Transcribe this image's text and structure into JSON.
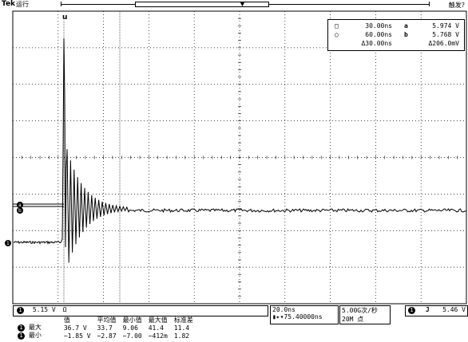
{
  "top": {
    "brand": "Tek",
    "status": "运行",
    "trigger_status": "触发?"
  },
  "cursors": {
    "row1": {
      "time": "30.00ns",
      "volt_sym": "a",
      "volt": "5.974 V"
    },
    "row2": {
      "time": "60.00ns",
      "volt_sym": "b",
      "volt": "5.768 V"
    },
    "delta": {
      "time": "Δ30.00ns",
      "volt": "Δ206.0mV"
    }
  },
  "channel": {
    "number": "1",
    "scale": "5.15 V",
    "coupling": "Ω",
    "marker": "1"
  },
  "horizontal": {
    "scale": "20.0ns",
    "position": "▮▸▾75.40000ns",
    "sample_rate": "5.00G次/秒",
    "record_length": "20M 点"
  },
  "trigger": {
    "source": "1",
    "slope": "J",
    "level": "5.46 V"
  },
  "measurements": {
    "headers": [
      "",
      "值",
      "平均值",
      "最小值",
      "最大值",
      "标准差"
    ],
    "rows": [
      {
        "label": "最大",
        "values": [
          "36.7 V",
          "33.7",
          "9.06",
          "41.4",
          "11.4"
        ]
      },
      {
        "label": "最小",
        "values": [
          "−1.85 V",
          "−2.87",
          "−7.00",
          "−412m",
          "1.82"
        ]
      }
    ]
  },
  "colors": {
    "background": "#ffffff",
    "trace": "#000000",
    "grid": "#000000"
  }
}
